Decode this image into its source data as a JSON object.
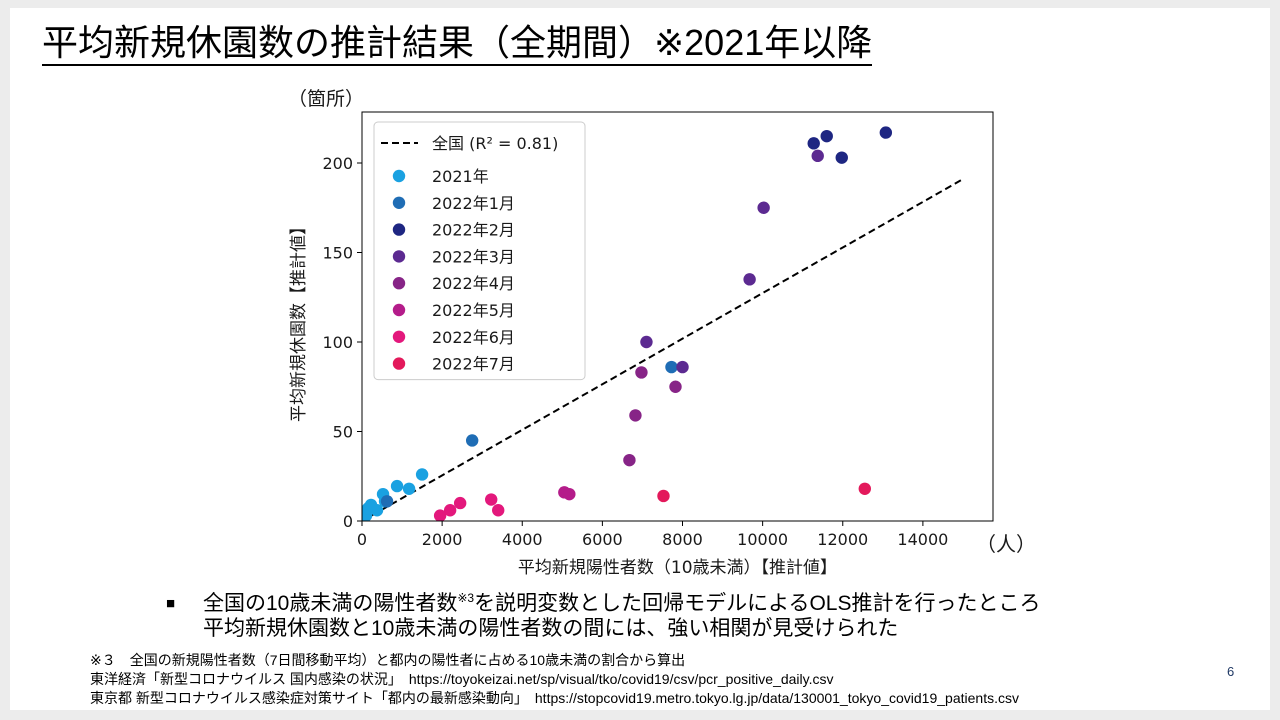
{
  "slide": {
    "title": "平均新規休園数の推計結果（全期間）※2021年以降",
    "page_number": "6"
  },
  "bullet": {
    "marker": "■",
    "line1_a": "全国の10歳未満の陽性者数",
    "line1_sup": "※3",
    "line1_b": "を説明変数とした回帰モデルによるOLS推計を行ったところ",
    "line2": "平均新規休園数と10歳未満の陽性者数の間には、強い相関が見受けられた"
  },
  "footnotes": [
    "※３　全国の新規陽性者数（7日間移動平均）と都内の陽性者に占める10歳未満の割合から算出",
    "東洋経済「新型コロナウイルス 国内感染の状況」　https://toyokeizai.net/sp/visual/tko/covid19/csv/pcr_positive_daily.csv",
    "東京都 新型コロナウイルス感染症対策サイト「都内の最新感染動向」　https://stopcovid19.metro.tokyo.lg.jp/data/130001_tokyo_covid19_patients.csv"
  ],
  "colors": {
    "text": "#000000",
    "page_number": "#1f3864",
    "axis": "#000000",
    "legend_border": "#cccccc"
  },
  "chart_data": {
    "type": "scatter",
    "xlabel": "平均新規陽性者数（10歳未満）【推計値】",
    "ylabel": "平均新規休園数【推計値】",
    "x_unit_label": "（人）",
    "y_unit_label": "（箇所）",
    "xlim": [
      0,
      15750
    ],
    "ylim": [
      0,
      228.5
    ],
    "xticks": [
      0,
      2000,
      4000,
      6000,
      8000,
      10000,
      12000,
      14000
    ],
    "yticks": [
      0,
      50,
      100,
      150,
      200
    ],
    "grid": false,
    "legend_position": "upper-left",
    "regression": {
      "label": "全国 (R² = 0.81)",
      "x": [
        0,
        15000
      ],
      "y": [
        0,
        191
      ],
      "color": "#000000",
      "style": "dashed"
    },
    "series": [
      {
        "name": "2021年",
        "color": "#1aa1e1",
        "points": [
          [
            100,
            3
          ],
          [
            150,
            7
          ],
          [
            225,
            9
          ],
          [
            375,
            6
          ],
          [
            525,
            15
          ],
          [
            575,
            11
          ],
          [
            875,
            19.5
          ],
          [
            1175,
            18
          ],
          [
            1500,
            26
          ]
        ]
      },
      {
        "name": "2022年1月",
        "color": "#1f6db5",
        "points": [
          [
            625,
            11
          ],
          [
            2750,
            45
          ],
          [
            7725,
            86
          ]
        ]
      },
      {
        "name": "2022年2月",
        "color": "#1e2682",
        "points": [
          [
            11275,
            211
          ],
          [
            11600,
            215
          ],
          [
            11975,
            203
          ],
          [
            13075,
            217
          ]
        ]
      },
      {
        "name": "2022年3月",
        "color": "#5c2a91",
        "points": [
          [
            11375,
            204
          ],
          [
            10025,
            175
          ],
          [
            9675,
            135
          ],
          [
            7100,
            100
          ],
          [
            8000,
            86
          ]
        ]
      },
      {
        "name": "2022年4月",
        "color": "#872487",
        "points": [
          [
            6975,
            83
          ],
          [
            7825,
            75
          ],
          [
            6825,
            59
          ],
          [
            6675,
            34
          ]
        ]
      },
      {
        "name": "2022年5月",
        "color": "#b41c8a",
        "points": [
          [
            5050,
            16
          ],
          [
            5175,
            15
          ]
        ]
      },
      {
        "name": "2022年6月",
        "color": "#e3187c",
        "points": [
          [
            1950,
            3
          ],
          [
            2200,
            6
          ],
          [
            2450,
            10
          ],
          [
            3225,
            12
          ],
          [
            3400,
            6
          ]
        ]
      },
      {
        "name": "2022年7月",
        "color": "#e3195b",
        "points": [
          [
            7525,
            14
          ],
          [
            12550,
            18
          ]
        ]
      }
    ]
  }
}
